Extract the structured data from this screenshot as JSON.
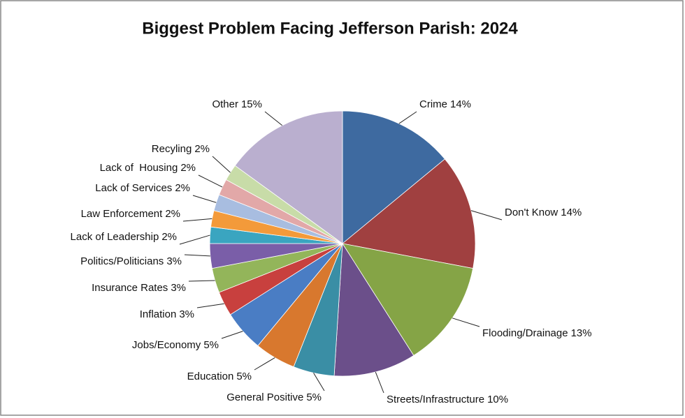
{
  "chart_data": {
    "type": "pie",
    "title": "Biggest Problem Facing Jefferson Parish: 2024",
    "categories": [
      "Crime",
      "Don't Know",
      "Flooding/Drainage",
      "Streets/Infrastructure",
      "General Positive",
      "Education",
      "Jobs/Economy",
      "Inflation",
      "Insurance Rates",
      "Politics/Politicians",
      "Lack of Leadership",
      "Law Enforcement",
      "Lack of Services",
      "Lack of  Housing",
      "Recyling",
      "Other"
    ],
    "values": [
      14,
      14,
      13,
      10,
      5,
      5,
      5,
      3,
      3,
      3,
      2,
      2,
      2,
      2,
      2,
      15
    ],
    "value_labels": [
      "14%",
      "14%",
      "13%",
      "10%",
      "5%",
      "5%",
      "5%",
      "3%",
      "3%",
      "3%",
      "2%",
      "2%",
      "2%",
      "2%",
      "2%",
      "15%"
    ],
    "colors": [
      "#3e6aa0",
      "#a04040",
      "#85a446",
      "#6b4f8a",
      "#3a8ea5",
      "#d8782e",
      "#4a7dc4",
      "#c8403e",
      "#93b55a",
      "#7a5ea8",
      "#3aa5c0",
      "#f39a3a",
      "#a8bde0",
      "#e2a8a8",
      "#c8dca8",
      "#baafcf"
    ]
  }
}
